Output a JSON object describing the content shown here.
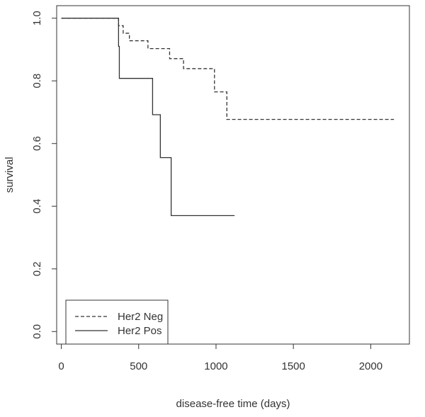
{
  "chart_data": {
    "type": "line",
    "xlabel": "disease-free time (days)",
    "ylabel": "survival",
    "xlim": [
      -30,
      2250
    ],
    "ylim": [
      -0.04,
      1.04
    ],
    "xticks": [
      0,
      500,
      1000,
      1500,
      2000
    ],
    "yticks": [
      0.0,
      0.2,
      0.4,
      0.6,
      0.8,
      1.0
    ],
    "xtick_labels": [
      "0",
      "500",
      "1000",
      "1500",
      "2000"
    ],
    "ytick_labels": [
      "0.0",
      "0.2",
      "0.4",
      "0.6",
      "0.8",
      "1.0"
    ],
    "step": true,
    "grid": false,
    "legend_position": "bottom-left",
    "series": [
      {
        "name": "Her2 Neg",
        "line_style": "dashed",
        "color": "#333333",
        "x": [
          0,
          370,
          400,
          440,
          560,
          700,
          790,
          990,
          1070,
          2150
        ],
        "y": [
          1.0,
          0.976,
          0.952,
          0.928,
          0.903,
          0.871,
          0.839,
          0.765,
          0.677,
          0.677
        ]
      },
      {
        "name": "Her2 Pos",
        "line_style": "solid",
        "color": "#333333",
        "x": [
          0,
          370,
          375,
          590,
          640,
          710,
          1120
        ],
        "y": [
          1.0,
          0.91,
          0.808,
          0.692,
          0.555,
          0.37,
          0.37
        ]
      }
    ]
  }
}
